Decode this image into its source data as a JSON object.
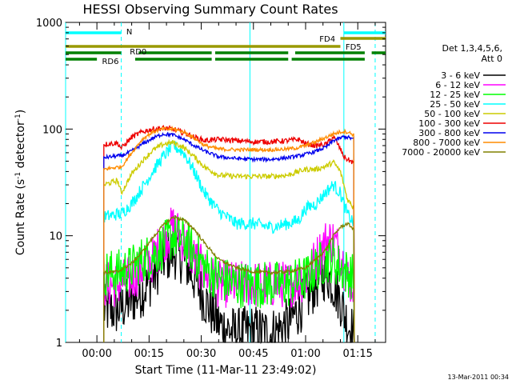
{
  "chart_data": {
    "type": "line",
    "title": "HESSI Observing Summary Count Rates",
    "xlabel": "Start Time (11-Mar-11 23:49:02)",
    "ylabel_main": "Count Rate (s",
    "ylabel_sup1": "-1",
    "ylabel_mid": " detector",
    "ylabel_sup2": "-1",
    "ylabel_end": ")",
    "y_scale": "log",
    "ylim": [
      1,
      1000
    ],
    "xlim_minutes": [
      -9,
      83
    ],
    "x_ticks": [
      {
        "m": 0,
        "label": "00:00"
      },
      {
        "m": 15,
        "label": "00:15"
      },
      {
        "m": 30,
        "label": "00:30"
      },
      {
        "m": 45,
        "label": "00:45"
      },
      {
        "m": 60,
        "label": "01:00"
      },
      {
        "m": 75,
        "label": "01:15"
      }
    ],
    "y_ticks": [
      {
        "v": 1,
        "label": "1"
      },
      {
        "v": 10,
        "label": "10"
      },
      {
        "v": 100,
        "label": "100"
      },
      {
        "v": 1000,
        "label": "1000"
      }
    ],
    "legend_header": [
      "Det 1,3,4,5,6,",
      "Att 0"
    ],
    "legend": [
      {
        "label": "3 - 6 keV",
        "color": "#000000"
      },
      {
        "label": "6 - 12 keV",
        "color": "#ff00ff"
      },
      {
        "label": "12 - 25 keV",
        "color": "#00ff00"
      },
      {
        "label": "25 - 50 keV",
        "color": "#00ffff"
      },
      {
        "label": "50 - 100 keV",
        "color": "#cccc00"
      },
      {
        "label": "100 - 300 keV",
        "color": "#ee0000"
      },
      {
        "label": "300 - 800 keV",
        "color": "#0000ee"
      },
      {
        "label": "800 - 7000 keV",
        "color": "#ff8c00"
      },
      {
        "label": "7000 - 20000 keV",
        "color": "#808000"
      }
    ],
    "flags": [
      {
        "label": "N",
        "color": "#00ffff",
        "level": 1,
        "segments": [
          [
            -9,
            7
          ],
          [
            71,
            83
          ]
        ]
      },
      {
        "label": "FD4",
        "color": "#999900",
        "level": 2,
        "segments": [
          [
            70,
            83
          ]
        ]
      },
      {
        "label": "FD5",
        "color": "#999900",
        "level": 3,
        "segments": [
          [
            -9,
            70
          ]
        ]
      },
      {
        "label": "RD0",
        "color": "#008000",
        "level": 4,
        "segments": [
          [
            -9,
            7
          ],
          [
            12,
            33
          ],
          [
            34,
            55
          ],
          [
            57,
            77
          ],
          [
            79,
            83
          ]
        ]
      },
      {
        "label": "RD6",
        "color": "#008000",
        "level": 5,
        "segments": [
          [
            -9,
            0
          ],
          [
            11,
            33
          ],
          [
            34,
            55
          ],
          [
            56,
            77
          ]
        ]
      }
    ],
    "markers": [
      {
        "m": -9,
        "color": "#00ffff",
        "style": "solid"
      },
      {
        "m": 7,
        "color": "#00ffff",
        "style": "dashed"
      },
      {
        "m": 71,
        "color": "#00ffff",
        "style": "solid"
      },
      {
        "m": 80,
        "color": "#00ffff",
        "style": "dashed"
      },
      {
        "m": 44,
        "color": "#00ffff",
        "style": "solid"
      }
    ],
    "series": [
      {
        "name": "3 - 6 keV",
        "color": "#000000",
        "noise": 0.5,
        "x": [
          2,
          6,
          10,
          13,
          16,
          19,
          22,
          25,
          28,
          31,
          35,
          40,
          45,
          50,
          55,
          60,
          63,
          66,
          68,
          70,
          72,
          74
        ],
        "y": [
          2,
          2,
          2.5,
          3,
          4,
          6,
          7,
          6,
          4,
          2.5,
          1.5,
          1.2,
          1.3,
          1.2,
          1.5,
          2.5,
          3.5,
          4.5,
          3.5,
          2.5,
          1.5,
          1.2
        ]
      },
      {
        "name": "6 - 12 keV",
        "color": "#ff00ff",
        "noise": 0.45,
        "x": [
          2,
          6,
          10,
          13,
          16,
          19,
          22,
          25,
          28,
          31,
          35,
          40,
          45,
          50,
          55,
          60,
          63,
          66,
          68,
          70,
          72,
          74
        ],
        "y": [
          3.5,
          3.5,
          4,
          5,
          6,
          9,
          12,
          9,
          6,
          4.5,
          3.5,
          3.5,
          3.5,
          3.5,
          3.5,
          4,
          6,
          9,
          9,
          7,
          4,
          3.5
        ]
      },
      {
        "name": "12 - 25 keV",
        "color": "#00ff00",
        "noise": 0.45,
        "x": [
          2,
          6,
          10,
          13,
          16,
          19,
          22,
          25,
          28,
          31,
          35,
          40,
          45,
          50,
          55,
          60,
          63,
          66,
          68,
          70,
          72,
          74
        ],
        "y": [
          4.5,
          4.5,
          5,
          6,
          6.5,
          8,
          10,
          9,
          7,
          5,
          4,
          3.5,
          3.5,
          3.5,
          3.5,
          4,
          5,
          6,
          6,
          5,
          4.5,
          4
        ]
      },
      {
        "name": "25 - 50 keV",
        "color": "#00ffff",
        "noise": 0.12,
        "x": [
          2,
          6,
          7,
          10,
          13,
          16,
          19,
          22,
          25,
          28,
          31,
          35,
          40,
          45,
          50,
          55,
          58,
          60,
          63,
          66,
          68,
          70,
          71,
          72,
          74
        ],
        "y": [
          15,
          16,
          16,
          20,
          28,
          40,
          55,
          70,
          60,
          40,
          25,
          17,
          13,
          13,
          12,
          13,
          14,
          18,
          20,
          26,
          30,
          25,
          20,
          16,
          13
        ]
      },
      {
        "name": "50 - 100 keV",
        "color": "#cccc00",
        "noise": 0.05,
        "x": [
          2,
          6,
          7,
          10,
          13,
          16,
          19,
          22,
          25,
          28,
          31,
          35,
          40,
          45,
          50,
          55,
          58,
          60,
          63,
          66,
          68,
          70,
          71,
          72,
          74
        ],
        "y": [
          30,
          33,
          25,
          38,
          50,
          63,
          72,
          75,
          67,
          55,
          44,
          37,
          36,
          36,
          36,
          37,
          40,
          42,
          42,
          45,
          49,
          40,
          30,
          22,
          18
        ]
      },
      {
        "name": "100 - 300 keV",
        "color": "#ee0000",
        "noise": 0.05,
        "x": [
          2,
          6,
          7,
          10,
          13,
          16,
          19,
          22,
          25,
          28,
          31,
          35,
          40,
          45,
          50,
          55,
          58,
          60,
          63,
          66,
          68,
          70,
          71,
          72,
          74
        ],
        "y": [
          72,
          74,
          66,
          84,
          94,
          100,
          102,
          100,
          92,
          84,
          78,
          80,
          78,
          76,
          76,
          78,
          80,
          73,
          70,
          72,
          85,
          65,
          55,
          52,
          48
        ]
      },
      {
        "name": "300 - 800 keV",
        "color": "#0000ee",
        "noise": 0.035,
        "x": [
          2,
          6,
          7,
          10,
          13,
          16,
          19,
          22,
          25,
          28,
          31,
          35,
          40,
          45,
          50,
          55,
          58,
          60,
          63,
          66,
          68,
          70,
          71,
          72,
          74
        ],
        "y": [
          54,
          56,
          56,
          62,
          72,
          82,
          90,
          88,
          80,
          70,
          62,
          55,
          53,
          52,
          52,
          54,
          56,
          58,
          62,
          68,
          78,
          82,
          85,
          84,
          80
        ]
      },
      {
        "name": "800 - 7000 keV",
        "color": "#ff8c00",
        "noise": 0.035,
        "x": [
          2,
          6,
          7,
          10,
          13,
          16,
          19,
          22,
          25,
          28,
          31,
          35,
          40,
          45,
          50,
          55,
          58,
          60,
          63,
          66,
          68,
          70,
          71,
          72,
          74
        ],
        "y": [
          42,
          44,
          44,
          60,
          80,
          94,
          100,
          100,
          94,
          82,
          70,
          65,
          64,
          64,
          64,
          65,
          67,
          70,
          76,
          84,
          90,
          94,
          95,
          94,
          88
        ]
      },
      {
        "name": "7000 - 20000 keV",
        "color": "#808000",
        "noise": 0.03,
        "x": [
          2,
          6,
          10,
          13,
          16,
          19,
          22,
          25,
          28,
          31,
          35,
          40,
          45,
          50,
          55,
          60,
          63,
          66,
          68,
          70,
          72,
          74
        ],
        "y": [
          4.5,
          4.6,
          5.5,
          7,
          9.5,
          12.5,
          15,
          14,
          11.5,
          8.5,
          6,
          5,
          4.6,
          4.5,
          4.6,
          5,
          6,
          7.5,
          10,
          12,
          13,
          11.5
        ]
      }
    ]
  },
  "footer_timestamp": "13-Mar-2011 00:34"
}
